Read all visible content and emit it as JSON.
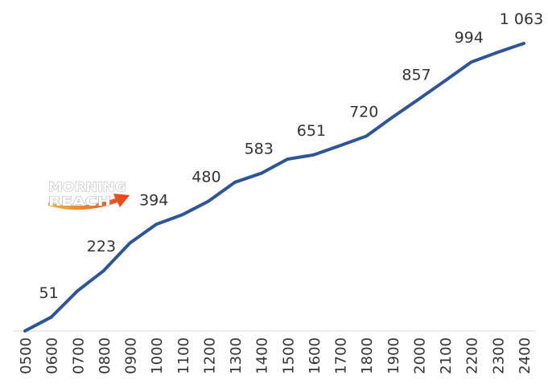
{
  "chart_data": {
    "type": "line",
    "title": "",
    "xlabel": "",
    "ylabel": "",
    "categories": [
      "0500",
      "0600",
      "0700",
      "0800",
      "0900",
      "1000",
      "1100",
      "1200",
      "1300",
      "1400",
      "1500",
      "1600",
      "1700",
      "1800",
      "1900",
      "2000",
      "2100",
      "2200",
      "2300",
      "2400"
    ],
    "series": [
      {
        "values": [
          0,
          51,
          148,
          223,
          325,
          394,
          430,
          480,
          550,
          583,
          635,
          651,
          685,
          720,
          790,
          857,
          925,
          994,
          1030,
          1063
        ],
        "color": "#2e5597"
      }
    ],
    "data_labels": [
      {
        "index": 1,
        "text": "51"
      },
      {
        "index": 3,
        "text": "223"
      },
      {
        "index": 5,
        "text": "394"
      },
      {
        "index": 7,
        "text": "480"
      },
      {
        "index": 9,
        "text": "583"
      },
      {
        "index": 11,
        "text": "651"
      },
      {
        "index": 13,
        "text": "720"
      },
      {
        "index": 15,
        "text": "857"
      },
      {
        "index": 17,
        "text": "994"
      },
      {
        "index": 19,
        "text": "1 063"
      }
    ],
    "ylim": [
      0,
      1200
    ],
    "grid": false,
    "legend": "none",
    "axis_color": "#d9d9d9"
  },
  "logo": {
    "line1": "MORNING",
    "line2": "REACH",
    "arrow_color_start": "#f7b733",
    "arrow_color_end": "#e8401c"
  }
}
